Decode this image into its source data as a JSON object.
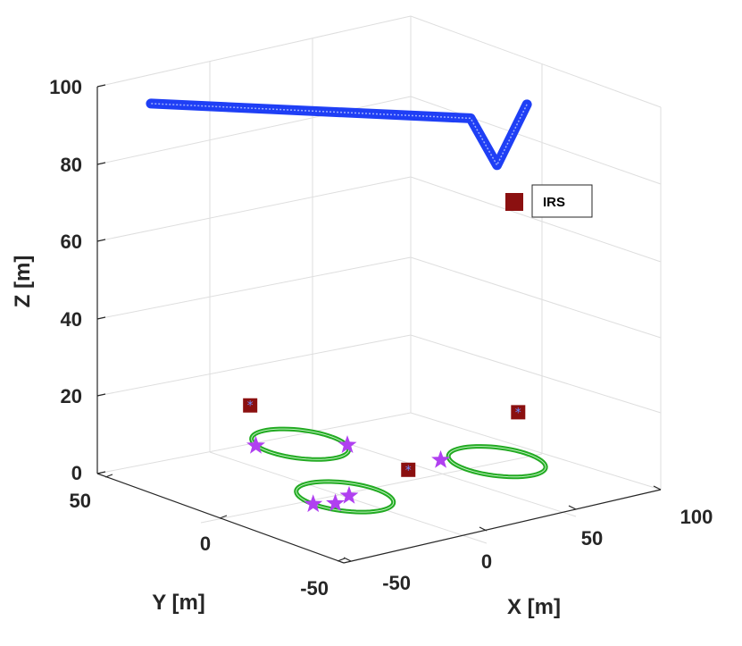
{
  "chart_data": {
    "type": "scatter",
    "subtype": "3d",
    "xlabel": "X [m]",
    "ylabel": "Y [m]",
    "zlabel": "Z [m]",
    "xlim": [
      -50,
      100
    ],
    "ylim": [
      -50,
      50
    ],
    "zlim": [
      0,
      100
    ],
    "xticks": [
      "-50",
      "0",
      "50",
      "100"
    ],
    "yticks": [
      "-50",
      "0",
      "50"
    ],
    "zticks": [
      "0",
      "20",
      "40",
      "60",
      "80",
      "100"
    ],
    "grid": true,
    "legend": {
      "entries": [
        "IRS"
      ],
      "placement": "inside-right"
    },
    "series": [
      {
        "name": "",
        "kind": "uav-trajectory",
        "marker": "circle",
        "color": "#1f3ff5",
        "points": [
          {
            "x": 60,
            "y": -30,
            "z": 100
          },
          {
            "x": 40,
            "y": -35,
            "z": 88
          },
          {
            "x": 45,
            "y": -20,
            "z": 96
          },
          {
            "x": -48,
            "y": 30,
            "z": 100
          }
        ]
      },
      {
        "name": "",
        "kind": "user-circles",
        "color": "#22aa22",
        "circles": [
          {
            "cx": 32,
            "cy": 38,
            "z": 0,
            "r": 15
          },
          {
            "cx": 3,
            "cy": -5,
            "z": 0,
            "r": 15
          },
          {
            "cx": 75,
            "cy": -5,
            "z": 0,
            "r": 15
          }
        ]
      },
      {
        "name": "",
        "kind": "users",
        "marker": "star",
        "color": "#b040f0",
        "points": [
          {
            "x": 18,
            "y": 44,
            "z": 0
          },
          {
            "x": 45,
            "y": 30,
            "z": 0
          },
          {
            "x": -12,
            "y": -5,
            "z": 0
          },
          {
            "x": -5,
            "y": -8,
            "z": 0
          },
          {
            "x": 5,
            "y": -5,
            "z": 0
          },
          {
            "x": 60,
            "y": 5,
            "z": 0
          }
        ]
      },
      {
        "name": "IRS",
        "marker": "square",
        "color": "#8b1010",
        "points": [
          {
            "x": 20,
            "y": 48,
            "z": 0
          },
          {
            "x": 92,
            "y": 1,
            "z": 0
          },
          {
            "x": 40,
            "y": 1,
            "z": 0
          }
        ]
      }
    ]
  }
}
